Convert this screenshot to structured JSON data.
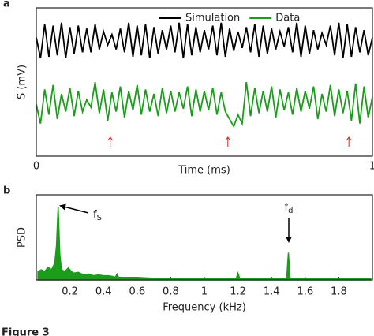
{
  "chart_data": [
    {
      "type": "line",
      "label": "a",
      "xlabel": "Time (ms)",
      "ylabel": "S (mV)",
      "xlim": [
        0,
        1
      ],
      "xticks": [
        0,
        1
      ],
      "ylim": [
        0,
        1
      ],
      "legend": "upper right",
      "x": [
        0,
        0.0125,
        0.025,
        0.0375,
        0.05,
        0.0625,
        0.075,
        0.0875,
        0.1,
        0.1125,
        0.125,
        0.1375,
        0.15,
        0.1625,
        0.175,
        0.1875,
        0.2,
        0.2125,
        0.225,
        0.2375,
        0.25,
        0.2625,
        0.275,
        0.2875,
        0.3,
        0.3125,
        0.325,
        0.3375,
        0.35,
        0.3625,
        0.375,
        0.3875,
        0.4,
        0.4125,
        0.425,
        0.4375,
        0.45,
        0.4625,
        0.475,
        0.4875,
        0.5,
        0.5125,
        0.525,
        0.5375,
        0.55,
        0.5625,
        0.575,
        0.5875,
        0.6,
        0.6125,
        0.625,
        0.6375,
        0.65,
        0.6625,
        0.675,
        0.6875,
        0.7,
        0.7125,
        0.725,
        0.7375,
        0.75,
        0.7625,
        0.775,
        0.7875,
        0.8,
        0.8125,
        0.825,
        0.8375,
        0.85,
        0.8625,
        0.875,
        0.8875,
        0.9,
        0.9125,
        0.925,
        0.9375,
        0.95,
        0.9625,
        0.975,
        0.9875,
        1
      ],
      "series": [
        {
          "name": "Simulation",
          "color": "#000000",
          "values": [
            0.8,
            0.66,
            0.89,
            0.67,
            0.88,
            0.68,
            0.9,
            0.66,
            0.87,
            0.69,
            0.88,
            0.7,
            0.86,
            0.7,
            0.89,
            0.72,
            0.84,
            0.75,
            0.82,
            0.72,
            0.86,
            0.7,
            0.9,
            0.67,
            0.88,
            0.68,
            0.89,
            0.66,
            0.87,
            0.69,
            0.85,
            0.72,
            0.88,
            0.7,
            0.9,
            0.66,
            0.89,
            0.68,
            0.87,
            0.7,
            0.85,
            0.72,
            0.88,
            0.68,
            0.9,
            0.67,
            0.86,
            0.71,
            0.84,
            0.73,
            0.87,
            0.7,
            0.89,
            0.67,
            0.88,
            0.69,
            0.86,
            0.72,
            0.84,
            0.74,
            0.87,
            0.7,
            0.9,
            0.67,
            0.88,
            0.69,
            0.85,
            0.72,
            0.83,
            0.75,
            0.88,
            0.68,
            0.9,
            0.66,
            0.89,
            0.67,
            0.87,
            0.7,
            0.85,
            0.68,
            0.8
          ]
        },
        {
          "name": "Data",
          "color": "#1a9e1a",
          "values": [
            0.35,
            0.22,
            0.45,
            0.28,
            0.48,
            0.25,
            0.42,
            0.3,
            0.46,
            0.27,
            0.44,
            0.3,
            0.38,
            0.33,
            0.5,
            0.29,
            0.45,
            0.24,
            0.43,
            0.3,
            0.47,
            0.26,
            0.44,
            0.31,
            0.48,
            0.28,
            0.45,
            0.3,
            0.42,
            0.27,
            0.46,
            0.29,
            0.44,
            0.3,
            0.43,
            0.32,
            0.47,
            0.27,
            0.45,
            0.3,
            0.44,
            0.31,
            0.46,
            0.28,
            0.43,
            0.3,
            0.25,
            0.2,
            0.28,
            0.22,
            0.5,
            0.27,
            0.46,
            0.29,
            0.44,
            0.3,
            0.47,
            0.26,
            0.45,
            0.31,
            0.43,
            0.28,
            0.46,
            0.3,
            0.44,
            0.32,
            0.47,
            0.25,
            0.42,
            0.3,
            0.48,
            0.27,
            0.45,
            0.29,
            0.44,
            0.24,
            0.49,
            0.22,
            0.47,
            0.26,
            0.4
          ]
        }
      ],
      "markers_x": [
        0.22,
        0.57,
        0.93
      ],
      "marker_color": "#e02020"
    },
    {
      "type": "area",
      "label": "b",
      "xlabel": "Frequency (kHz)",
      "ylabel": "PSD",
      "xlim": [
        0,
        2
      ],
      "xticks": [
        0.2,
        0.4,
        0.6,
        0.8,
        1,
        1.2,
        1.4,
        1.6,
        1.8
      ],
      "ylim": [
        0,
        1
      ],
      "x": [
        0.01,
        0.03,
        0.05,
        0.07,
        0.09,
        0.11,
        0.12,
        0.13,
        0.14,
        0.15,
        0.17,
        0.19,
        0.22,
        0.25,
        0.28,
        0.31,
        0.34,
        0.37,
        0.4,
        0.43,
        0.46,
        0.47,
        0.48,
        0.49,
        0.52,
        0.6,
        0.7,
        0.8,
        0.9,
        1.0,
        1.1,
        1.19,
        1.2,
        1.21,
        1.3,
        1.4,
        1.49,
        1.5,
        1.51,
        1.6,
        1.7,
        1.8,
        1.9,
        1.99
      ],
      "values": [
        0.1,
        0.12,
        0.1,
        0.15,
        0.12,
        0.2,
        0.4,
        0.86,
        0.3,
        0.12,
        0.1,
        0.14,
        0.08,
        0.09,
        0.06,
        0.07,
        0.05,
        0.06,
        0.05,
        0.05,
        0.04,
        0.03,
        0.07,
        0.03,
        0.03,
        0.03,
        0.02,
        0.02,
        0.02,
        0.02,
        0.02,
        0.02,
        0.08,
        0.02,
        0.02,
        0.02,
        0.02,
        0.32,
        0.02,
        0.02,
        0.02,
        0.02,
        0.02,
        0.02
      ],
      "color": "#1a9e1a",
      "annotations": [
        {
          "text": "f",
          "sub": "S"
        },
        {
          "text": "f",
          "sub": "d"
        }
      ]
    }
  ],
  "caption": "Figure 3"
}
